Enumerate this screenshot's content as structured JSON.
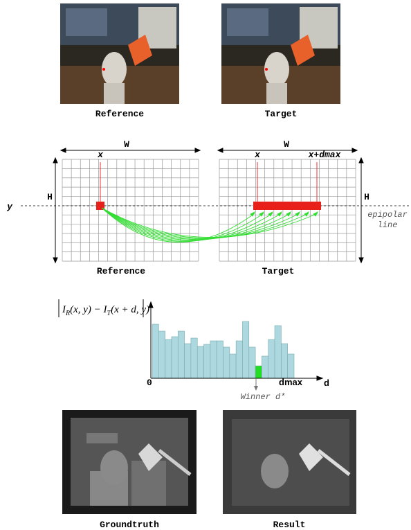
{
  "top_images": {
    "reference_caption": "Reference",
    "target_caption": "Target"
  },
  "grids": {
    "width_label": "W",
    "height_label": "H",
    "row_label": "y",
    "x_label": "x",
    "x_dmax_label": "x+dmax",
    "epipolar_line": [
      "epipolar",
      "line"
    ],
    "reference_caption": "Reference",
    "target_caption": "Target"
  },
  "cost_plot": {
    "formula": [
      "I",
      "R",
      "(x, y) − ",
      "I",
      "T",
      "(x + d, y)"
    ],
    "origin_label": "0",
    "dmax_label": "dmax",
    "axis_label": "d",
    "winner_label": "Winner d*",
    "values": [
      78,
      68,
      56,
      60,
      68,
      50,
      58,
      46,
      49,
      54,
      54,
      45,
      35,
      54,
      82,
      45,
      18,
      32,
      56,
      76,
      50,
      35
    ],
    "colors": [
      "#add8e0",
      "#add8e0",
      "#add8e0",
      "#add8e0",
      "#add8e0",
      "#add8e0",
      "#add8e0",
      "#add8e0",
      "#add8e0",
      "#add8e0",
      "#add8e0",
      "#add8e0",
      "#add8e0",
      "#add8e0",
      "#add8e0",
      "#add8e0",
      "#22dd22",
      "#add8e0",
      "#add8e0",
      "#add8e0",
      "#add8e0",
      "#add8e0"
    ]
  },
  "bottom_images": {
    "groundtruth_caption": "Groundtruth",
    "result_caption": "Result"
  }
}
